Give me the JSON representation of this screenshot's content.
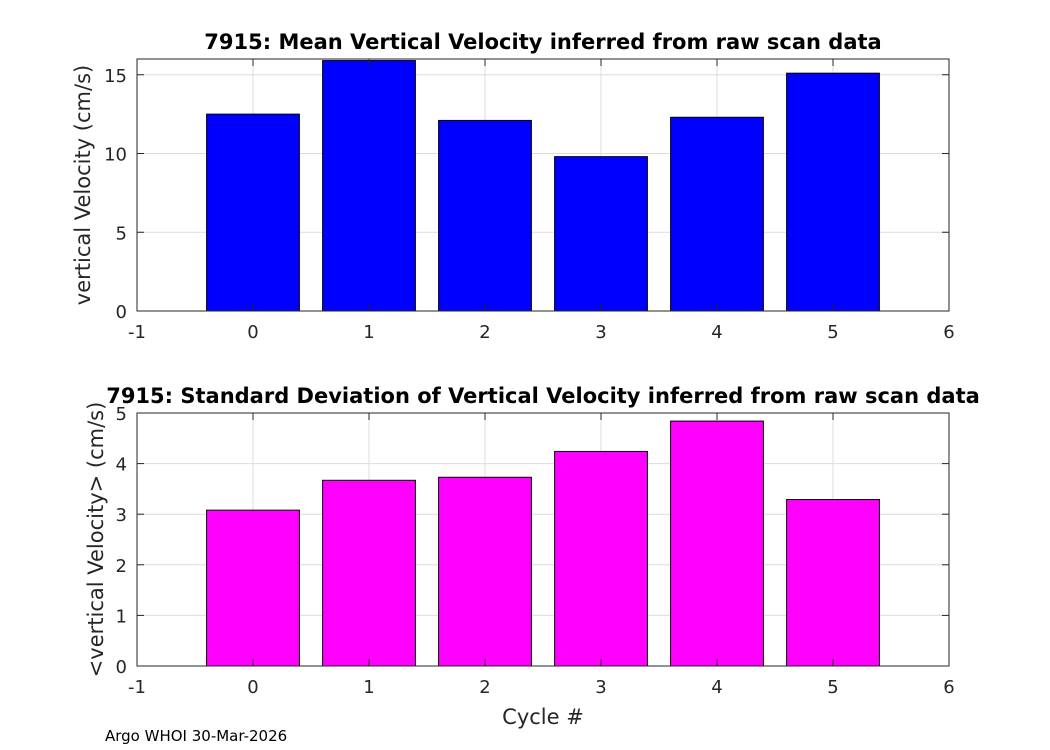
{
  "chart_data": [
    {
      "type": "bar",
      "title": "7915: Mean Vertical Velocity inferred from raw scan data",
      "xlabel": "",
      "ylabel": "vertical Velocity (cm/s)",
      "categories": [
        0,
        1,
        2,
        3,
        4,
        5
      ],
      "values": [
        12.5,
        15.9,
        12.1,
        9.8,
        12.3,
        15.1
      ],
      "xlim": [
        -1,
        6
      ],
      "ylim": [
        0,
        16
      ],
      "xticks": [
        -1,
        0,
        1,
        2,
        3,
        4,
        5,
        6
      ],
      "yticks": [
        0,
        5,
        10,
        15
      ],
      "bar_color": "#0000ff",
      "grid": true
    },
    {
      "type": "bar",
      "title": "7915: Standard Deviation of Vertical Velocity inferred from raw scan data",
      "xlabel": "Cycle #",
      "ylabel": "<vertical Velocity> (cm/s)",
      "categories": [
        0,
        1,
        2,
        3,
        4,
        5
      ],
      "values": [
        3.08,
        3.67,
        3.73,
        4.24,
        4.84,
        3.29
      ],
      "xlim": [
        -1,
        6
      ],
      "ylim": [
        0,
        5
      ],
      "xticks": [
        -1,
        0,
        1,
        2,
        3,
        4,
        5,
        6
      ],
      "yticks": [
        0,
        1,
        2,
        3,
        4,
        5
      ],
      "bar_color": "#ff00ff",
      "grid": true
    }
  ],
  "footer": "Argo WHOI 30-Mar-2026"
}
